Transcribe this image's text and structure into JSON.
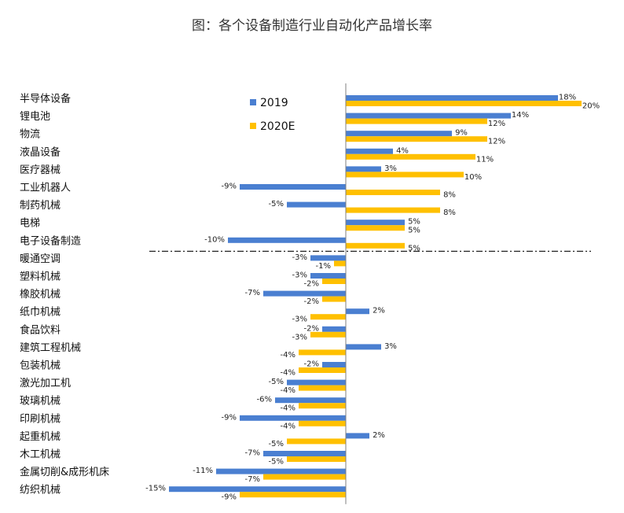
{
  "chart_data": {
    "type": "bar",
    "orientation": "horizontal",
    "title": "图：各个设备制造行业自动化产品增长率",
    "categories": [
      "半导体设备",
      "锂电池",
      "物流",
      "液晶设备",
      "医疗器械",
      "工业机器人",
      "制药机械",
      "电梯",
      "电子设备制造",
      "暖通空调",
      "塑料机械",
      "橡胶机械",
      "纸巾机械",
      "食品饮料",
      "建筑工程机械",
      "包装机械",
      "激光加工机",
      "玻璃机械",
      "印刷机械",
      "起重机械",
      "木工机械",
      "金属切削&成形机床",
      "纺织机械"
    ],
    "series": [
      {
        "name": "2019",
        "color": "#4a7fd1",
        "values": [
          18,
          14,
          9,
          4,
          3,
          -9,
          -5,
          5,
          -10,
          -3,
          -3,
          -7,
          2,
          -2,
          3,
          -2,
          -5,
          -6,
          -9,
          2,
          -7,
          -11,
          -15
        ]
      },
      {
        "name": "2020E",
        "color": "#ffc000",
        "values": [
          20,
          12,
          12,
          11,
          10,
          8,
          8,
          5,
          5,
          -1,
          -2,
          -2,
          -3,
          -3,
          -4,
          -4,
          -4,
          -4,
          -4,
          -5,
          -5,
          -7,
          -9
        ]
      }
    ],
    "value_labels": {
      "2019": [
        "18%",
        "14%",
        "9%",
        "4%",
        "3%",
        "-9%",
        "-5%",
        "5%",
        "-10%",
        "-3%",
        "-3%",
        "-7%",
        "2%",
        "-2%",
        "3%",
        "-2%",
        "-5%",
        "-6%",
        "-9%",
        "2%",
        "-7%",
        "-11%",
        "-15%"
      ],
      "2020E": [
        "20%",
        "12%",
        "12%",
        "11%",
        "10%",
        "8%",
        "8%",
        "5%",
        "5%",
        "-1%",
        "-2%",
        "-2%",
        "-3%",
        "-3%",
        "-4%",
        "-4%",
        "-4%",
        "-4%",
        "-4%",
        "-5%",
        "-5%",
        "-7%",
        "-9%"
      ]
    },
    "legend_position": "top-left",
    "divider_after_category": "电子设备制造",
    "grid": false
  }
}
